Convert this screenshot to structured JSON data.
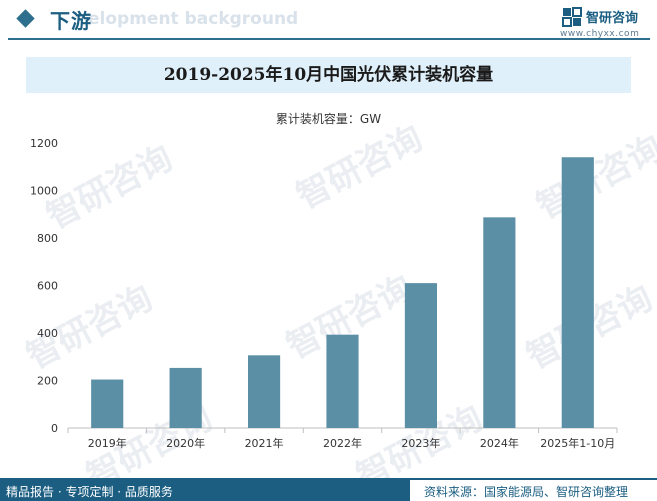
{
  "header": {
    "section_title": "下游",
    "section_subtitle": "elopment background",
    "brand_name": "智研咨询",
    "brand_url": "www.chyxx.com"
  },
  "watermark": {
    "text": "智研咨询"
  },
  "chart_data": {
    "type": "bar",
    "title": "2019-2025年10月中国光伏累计装机容量",
    "unit_label": "累计装机容量：GW",
    "categories": [
      "2019年",
      "2020年",
      "2021年",
      "2022年",
      "2023年",
      "2024年",
      "2025年1-10月"
    ],
    "values": [
      204,
      253,
      306,
      393,
      610,
      887,
      1140
    ],
    "ylim": [
      0,
      1200
    ],
    "yticks": [
      "0",
      "200",
      "400",
      "600",
      "800",
      "1000",
      "1200"
    ],
    "bar_color": "#5b8fa6",
    "grid": false
  },
  "footer": {
    "left_text": "精品报告 · 专项定制 · 品质服务",
    "right_text": "资料来源：国家能源局、智研咨询整理"
  },
  "colors": {
    "brand": "#1b5e82",
    "title_band": "#dff0fa"
  }
}
